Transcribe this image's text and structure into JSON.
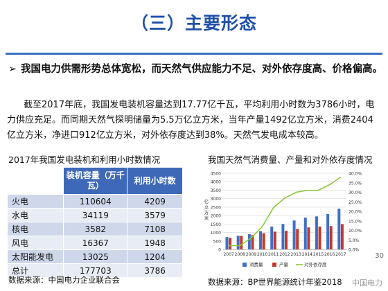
{
  "slide": {
    "title": "（三）主要形态",
    "bullet_mark": "➢",
    "bullet": "我国电力供需形势总体宽松，而天然气供应能力不足、对外依存度高、价格偏高。",
    "paragraph": "截至2017年底，我国发电装机容量达到17.77亿千瓦，平均利用小时数为3786小时，电力供应充足。而同期天然气探明储量为5.5万亿立方米，当年产量1492亿立方米，消费2404亿立方米，净进口912亿立方米，对外依存度达到38%。天然气发电成本较高。",
    "page_number": "30",
    "watermark": "中国电力"
  },
  "table": {
    "title": "2017年我国发电装机和利用小时数情况",
    "headers": [
      "",
      "装机容量（万千瓦）",
      "利用小时数"
    ],
    "rows": [
      [
        "火电",
        "110604",
        "4209"
      ],
      [
        "水电",
        "34119",
        "3579"
      ],
      [
        "核电",
        "3582",
        "7108"
      ],
      [
        "风电",
        "16367",
        "1948"
      ],
      [
        "太阳能发电",
        "13025",
        "1204"
      ],
      [
        "总计",
        "177703",
        "3786"
      ]
    ],
    "source": "数据来源：中国电力企业联合会"
  },
  "chart": {
    "title": "我国天然气消费量、产量和对外依存度情况",
    "source": "数据来源：BP世界能源统计年鉴2018"
  },
  "chart_data": {
    "type": "bar",
    "categories": [
      "2007",
      "2008",
      "2009",
      "2010",
      "2011",
      "2012",
      "2013",
      "2014",
      "2015",
      "2016",
      "2017"
    ],
    "series": [
      {
        "name": "消费量",
        "type": "bar",
        "axis": "left",
        "color": "#3f6fc6",
        "values": [
          730,
          810,
          900,
          1080,
          1350,
          1500,
          1710,
          1880,
          1950,
          2090,
          2400
        ]
      },
      {
        "name": "产量",
        "type": "bar",
        "axis": "left",
        "color": "#c0392b",
        "values": [
          690,
          800,
          850,
          960,
          1050,
          1100,
          1210,
          1300,
          1350,
          1380,
          1490
        ]
      },
      {
        "name": "对外依存度",
        "type": "line",
        "axis": "right",
        "color": "#8cc63e",
        "values": [
          2,
          2,
          6,
          12,
          22,
          27,
          30,
          31,
          31,
          34,
          38
        ]
      }
    ],
    "ylabel": "亿立方米",
    "yticks_left": [
      "0",
      "500",
      "1000",
      "1500",
      "2000",
      "2500",
      "3000",
      "3500",
      "4000",
      "4500"
    ],
    "ylim_left": [
      0,
      4500
    ],
    "yticks_right": [
      "0.0%",
      "5.0%",
      "10.0%",
      "15.0%",
      "20.0%",
      "25.0%",
      "30.0%",
      "35.0%",
      "40.0%"
    ],
    "ylim_right": [
      0,
      40
    ],
    "grid": true,
    "legend_position": "bottom"
  }
}
